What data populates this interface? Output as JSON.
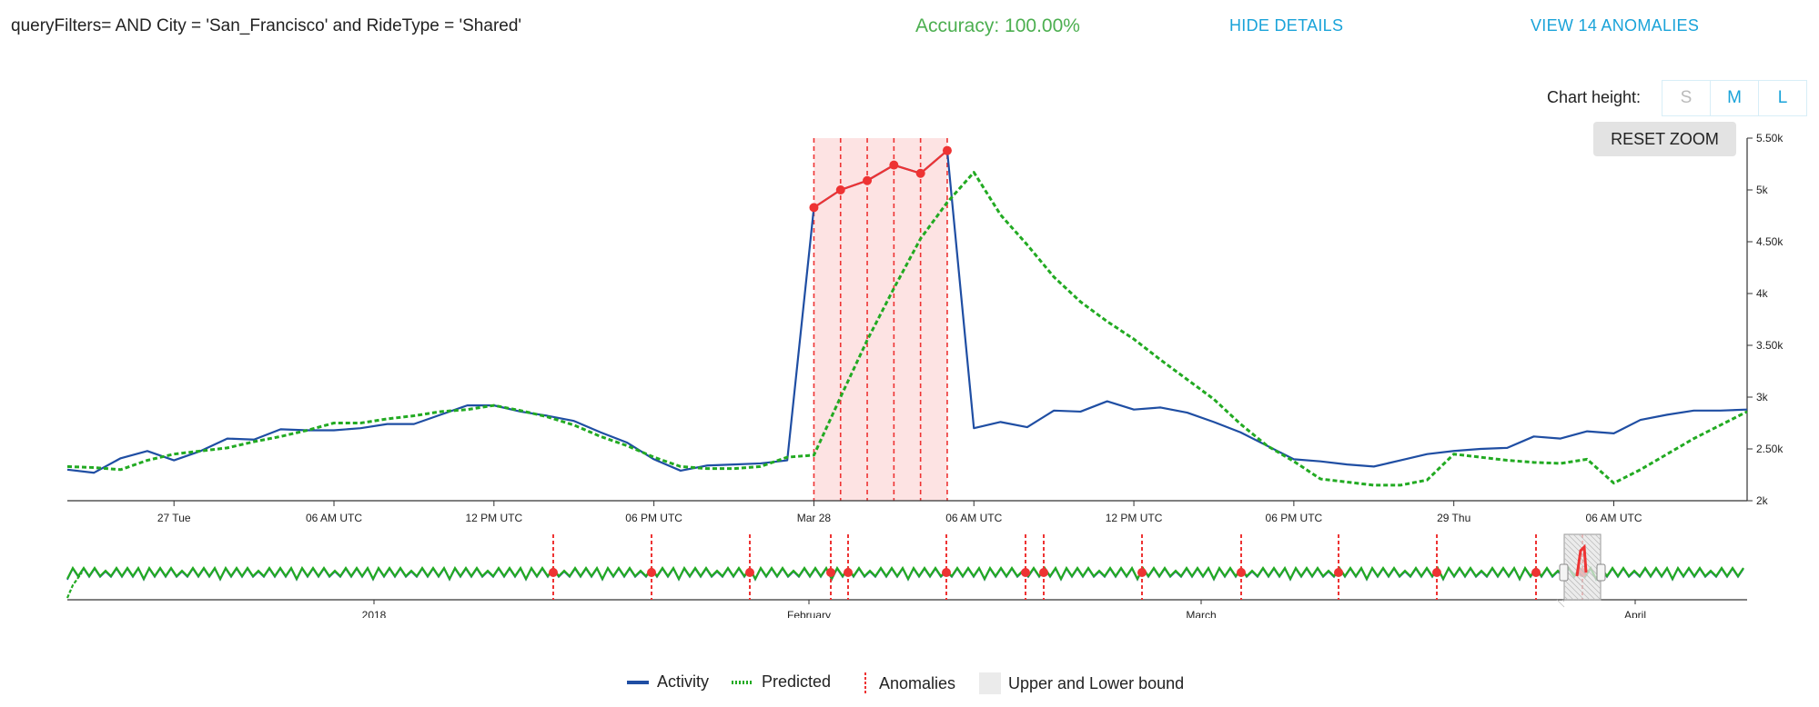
{
  "header": {
    "query": "queryFilters= AND City = 'San_Francisco' and RideType = 'Shared'",
    "accuracy": "Accuracy: 100.00%",
    "hide_details": "HIDE DETAILS",
    "view_anomalies": "VIEW 14 ANOMALIES"
  },
  "controls": {
    "chart_height_label": "Chart height:",
    "sizes": [
      "S",
      "M",
      "L"
    ],
    "reset_zoom": "RESET ZOOM"
  },
  "legend": {
    "activity": "Activity",
    "predicted": "Predicted",
    "anomalies": "Anomalies",
    "bounds": "Upper and Lower bound"
  },
  "colors": {
    "activity": "#1f4ea3",
    "predicted": "#22aa22",
    "anomaly": "#ee3333",
    "anomaly_band": "#fde3e3",
    "accent": "#1aa3d9"
  },
  "chart_data": [
    {
      "type": "line",
      "title": "",
      "ylabel": "",
      "ylim": [
        2000,
        5500
      ],
      "y_ticks": [
        "2k",
        "2.50k",
        "3k",
        "3.50k",
        "4k",
        "4.50k",
        "5k",
        "5.50k"
      ],
      "y_tick_values": [
        2000,
        2500,
        3000,
        3500,
        4000,
        4500,
        5000,
        5500
      ],
      "x_ticks": [
        "27 Tue",
        "06 AM UTC",
        "12 PM UTC",
        "06 PM UTC",
        "Mar 28",
        "06 AM UTC",
        "12 PM UTC",
        "06 PM UTC",
        "29 Thu",
        "06 AM UTC"
      ],
      "x_tick_hours": [
        0,
        6,
        12,
        18,
        24,
        30,
        36,
        42,
        48,
        54
      ],
      "xlim": [
        -4,
        59
      ],
      "anomaly_hours": [
        24,
        25,
        26,
        27,
        28,
        29
      ],
      "series": [
        {
          "name": "Activity",
          "x": [
            -4,
            -3,
            -2,
            -1,
            0,
            1,
            2,
            3,
            4,
            5,
            6,
            7,
            8,
            9,
            10,
            11,
            12,
            13,
            14,
            15,
            16,
            17,
            18,
            19,
            20,
            21,
            22,
            23,
            24,
            25,
            26,
            27,
            28,
            29,
            30,
            31,
            32,
            33,
            34,
            35,
            36,
            37,
            38,
            39,
            40,
            41,
            42,
            43,
            44,
            45,
            46,
            47,
            48,
            49,
            50,
            51,
            52,
            53,
            54,
            55,
            56,
            57,
            58,
            59
          ],
          "values": [
            2300,
            2270,
            2410,
            2480,
            2390,
            2480,
            2600,
            2590,
            2690,
            2680,
            2680,
            2700,
            2740,
            2740,
            2830,
            2920,
            2920,
            2860,
            2820,
            2770,
            2660,
            2560,
            2400,
            2290,
            2340,
            2350,
            2360,
            2390,
            4830,
            5000,
            5090,
            5240,
            5160,
            5380,
            2700,
            2760,
            2710,
            2870,
            2860,
            2960,
            2880,
            2900,
            2850,
            2760,
            2660,
            2530,
            2400,
            2380,
            2350,
            2330,
            2390,
            2450,
            2480,
            2500,
            2510,
            2620,
            2600,
            2670,
            2650,
            2780,
            2830,
            2870,
            2870,
            2880
          ]
        },
        {
          "name": "Predicted",
          "x": [
            -4,
            -3,
            -2,
            -1,
            0,
            1,
            2,
            3,
            4,
            5,
            6,
            7,
            8,
            9,
            10,
            11,
            12,
            13,
            14,
            15,
            16,
            17,
            18,
            19,
            20,
            21,
            22,
            23,
            24,
            25,
            26,
            27,
            28,
            29,
            30,
            31,
            32,
            33,
            34,
            35,
            36,
            37,
            38,
            39,
            40,
            41,
            42,
            43,
            44,
            45,
            46,
            47,
            48,
            49,
            50,
            51,
            52,
            53,
            54,
            55,
            56,
            57,
            58,
            59
          ],
          "values": [
            2330,
            2320,
            2300,
            2390,
            2450,
            2480,
            2510,
            2570,
            2620,
            2680,
            2750,
            2750,
            2790,
            2820,
            2860,
            2880,
            2920,
            2870,
            2810,
            2730,
            2620,
            2530,
            2420,
            2330,
            2310,
            2310,
            2330,
            2420,
            2440,
            3000,
            3550,
            4050,
            4530,
            4880,
            5170,
            4760,
            4470,
            4160,
            3920,
            3730,
            3560,
            3360,
            3170,
            2980,
            2740,
            2530,
            2380,
            2210,
            2180,
            2150,
            2150,
            2200,
            2450,
            2420,
            2390,
            2370,
            2360,
            2400,
            2170,
            2300,
            2450,
            2600,
            2730,
            2860
          ]
        }
      ]
    },
    {
      "type": "line",
      "title": "",
      "x_ticks": [
        "2018",
        "February",
        "March",
        "April"
      ],
      "anomaly_count": 14,
      "series": [
        {
          "name": "Activity"
        },
        {
          "name": "Predicted"
        }
      ]
    }
  ]
}
